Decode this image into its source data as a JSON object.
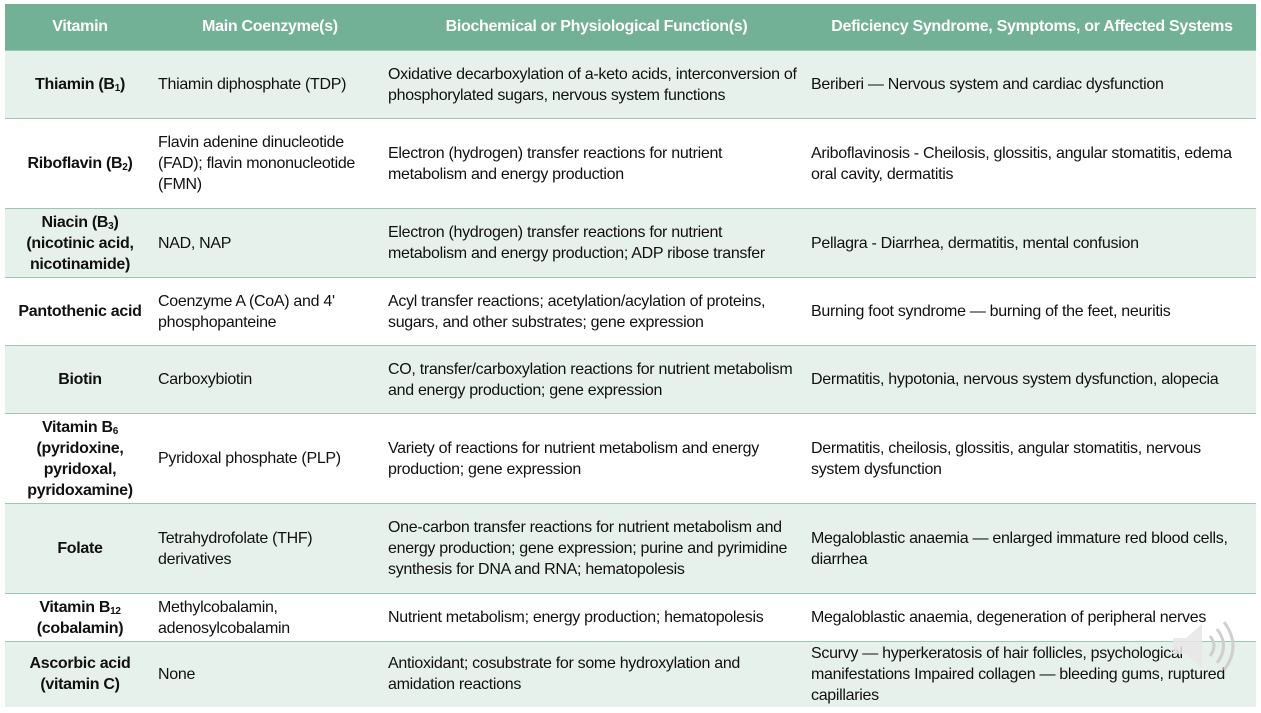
{
  "table": {
    "headers": [
      "Vitamin",
      "Main Coenzyme(s)",
      "Biochemical or Physiological Function(s)",
      "Deficiency Syndrome, Symptoms, or Affected Systems"
    ],
    "rows": [
      {
        "vitamin": {
          "main": "Thiamin (B",
          "sub": "1",
          "end": ")"
        },
        "coenzyme": "Thiamin diphosphate (TDP)",
        "function": "Oxidative decarboxylation of a-keto acids, interconversion of phosphorylated sugars, nervous system functions",
        "deficiency": "Beriberi — Nervous system and cardiac dysfunction"
      },
      {
        "vitamin": {
          "main": "Riboflavin (B",
          "sub": "2",
          "end": ")"
        },
        "coenzyme": "Flavin adenine dinucleotide (FAD); flavin mononucleotide (FMN)",
        "function": "Electron (hydrogen) transfer reactions for nutrient metabolism and energy production",
        "deficiency": "Ariboflavinosis - Cheilosis, glossitis, angular stomatitis, edema oral cavity, dermatitis"
      },
      {
        "vitamin": {
          "main": "Niacin (B",
          "sub": "3",
          "end": ")",
          "note": "(nicotinic acid, nicotinamide)"
        },
        "coenzyme": "NAD, NAP",
        "function": "Electron (hydrogen) transfer reactions for nutrient metabolism and energy production; ADP ribose transfer",
        "deficiency": "Pellagra - Diarrhea, dermatitis, mental confusion"
      },
      {
        "vitamin": "Pantothenic acid",
        "coenzyme": "Coenzyme A (CoA) and 4' phosphopanteine",
        "function": "Acyl transfer reactions; acetylation/acylation of proteins, sugars, and other substrates; gene expression",
        "deficiency": "Burning foot syndrome — burning of the feet, neuritis"
      },
      {
        "vitamin": "Biotin",
        "coenzyme": "Carboxybiotin",
        "function": "CO, transfer/carboxylation reactions for nutrient metabolism and energy production; gene expression",
        "deficiency": "Dermatitis, hypotonia, nervous system dysfunction, alopecia"
      },
      {
        "vitamin": {
          "main": "Vitamin B",
          "sub": "6",
          "note": "(pyridoxine, pyridoxal, pyridoxamine)"
        },
        "coenzyme": "Pyridoxal phosphate (PLP)",
        "function": "Variety of reactions for nutrient metabolism and energy production; gene expression",
        "deficiency": "Dermatitis, cheilosis, glossitis, angular stomatitis, nervous system dysfunction"
      },
      {
        "vitamin": "Folate",
        "coenzyme": "Tetrahydrofolate (THF) derivatives",
        "function": "One-carbon transfer reactions for nutrient metabolism and energy production; gene expression; purine and pyrimidine synthesis for DNA and RNA; hematopolesis",
        "deficiency": "Megaloblastic anaemia — enlarged immature red blood cells, diarrhea"
      },
      {
        "vitamin": {
          "main": "Vitamin B",
          "sub": "12",
          "note": "(cobalamin)"
        },
        "coenzyme": "Methylcobalamin, adenosylcobalamin",
        "function": "Nutrient metabolism; energy production; hematopolesis",
        "deficiency": "Megaloblastic anaemia, degeneration of peripheral nerves"
      },
      {
        "vitamin": "Ascorbic acid (vitamin C)",
        "coenzyme": "None",
        "function": "Antioxidant; cosubstrate for some hydroxylation and amidation reactions",
        "deficiency": "Scurvy — hyperkeratosis of hair follicles, psychological manifestations Impaired collagen — bleeding gums, ruptured capillaries"
      }
    ]
  }
}
